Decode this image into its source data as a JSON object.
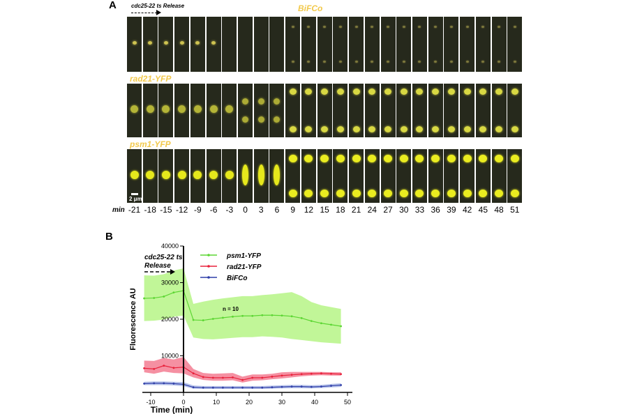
{
  "panel_a": {
    "letter": "A",
    "release_label": "cdc25-22 ts Release",
    "rows": [
      {
        "label": "BiFCo"
      },
      {
        "label": "rad21-YFP"
      },
      {
        "label": "psm1-YFP"
      }
    ],
    "scale_bar": "2 μm",
    "axis_label": "min",
    "time_points": [
      "-21",
      "-18",
      "-15",
      "-12",
      "-9",
      "-6",
      "-3",
      "0",
      "3",
      "6",
      "9",
      "12",
      "15",
      "18",
      "21",
      "24",
      "27",
      "30",
      "33",
      "36",
      "39",
      "42",
      "45",
      "48",
      "51"
    ],
    "colors": {
      "fluorescence": "#f2c94c",
      "background": "#26291c"
    }
  },
  "panel_b": {
    "letter": "B",
    "release_line1": "cdc25-22 ts",
    "release_line2": "Release",
    "n_label": "n = 10"
  },
  "chart_data": {
    "type": "line",
    "title": "",
    "xlabel": "Time (min)",
    "ylabel": "Fluorescence AU",
    "xlim": [
      -14,
      50
    ],
    "ylim": [
      0,
      40000
    ],
    "xticks": [
      -10,
      0,
      10,
      20,
      30,
      40,
      50
    ],
    "yticks": [
      10000,
      20000,
      30000,
      40000
    ],
    "grid": false,
    "legend_position": "top-center",
    "annotation": "n = 10",
    "x": [
      -12,
      -9,
      -6,
      -3,
      0,
      3,
      6,
      9,
      12,
      15,
      18,
      21,
      24,
      27,
      30,
      33,
      36,
      39,
      42,
      45,
      48
    ],
    "series": [
      {
        "name": "psm1-YFP",
        "color": "#5cd633",
        "band_color": "#b6f586",
        "values": [
          25700,
          25800,
          26200,
          27300,
          27800,
          19800,
          19700,
          20100,
          20400,
          20700,
          20900,
          20900,
          21100,
          21100,
          21000,
          20800,
          20300,
          19500,
          18900,
          18500,
          18100
        ],
        "lower": [
          19500,
          19600,
          19900,
          20700,
          21000,
          15000,
          14600,
          14500,
          14700,
          14900,
          15100,
          15100,
          15300,
          15200,
          15000,
          14600,
          14300,
          14000,
          13700,
          13500,
          13300
        ],
        "upper": [
          32000,
          31900,
          32300,
          33300,
          33900,
          24200,
          24800,
          25300,
          25700,
          26000,
          26300,
          26300,
          26600,
          26800,
          27100,
          27400,
          26300,
          24700,
          23800,
          23300,
          22800
        ]
      },
      {
        "name": "rad21-YFP",
        "color": "#e8203a",
        "band_color": "#f37c92",
        "values": [
          6600,
          6400,
          7300,
          6700,
          6900,
          5200,
          4200,
          4000,
          4000,
          4100,
          3400,
          4000,
          4000,
          4300,
          4600,
          4800,
          5000,
          5100,
          5200,
          5100,
          5000
        ],
        "lower": [
          5500,
          5100,
          5700,
          5300,
          5200,
          4100,
          3400,
          3200,
          3200,
          3300,
          2700,
          3200,
          3300,
          3600,
          3800,
          4100,
          4400,
          4600,
          4700,
          4600,
          4600
        ],
        "upper": [
          8700,
          8600,
          9400,
          9000,
          9700,
          6400,
          5300,
          5100,
          5200,
          5300,
          4300,
          4900,
          4900,
          5100,
          5500,
          5600,
          5600,
          5600,
          5600,
          5500,
          5500
        ]
      },
      {
        "name": "BiFCo",
        "color": "#2f3ea8",
        "band_color": "#aab8e6",
        "values": [
          2400,
          2500,
          2500,
          2400,
          2200,
          1400,
          1300,
          1300,
          1300,
          1300,
          1300,
          1300,
          1300,
          1400,
          1500,
          1600,
          1600,
          1500,
          1600,
          1800,
          2000
        ],
        "lower": [
          2000,
          2000,
          2000,
          1900,
          1700,
          1000,
          950,
          950,
          950,
          950,
          950,
          950,
          950,
          1000,
          1100,
          1150,
          1150,
          1100,
          1200,
          1350,
          1500
        ],
        "upper": [
          2900,
          3000,
          3000,
          2900,
          2800,
          1900,
          1750,
          1750,
          1750,
          1750,
          1750,
          1750,
          1750,
          1850,
          1950,
          2050,
          2050,
          1950,
          2050,
          2300,
          2500
        ]
      }
    ]
  }
}
